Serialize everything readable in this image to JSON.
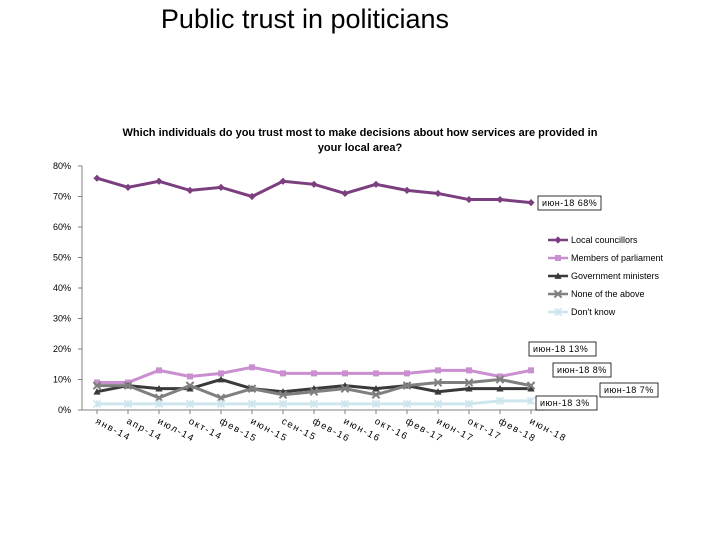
{
  "page": {
    "title": "Public trust in politicians"
  },
  "chart_data": {
    "type": "line",
    "title_lines": [
      "Which individuals do you trust most to make decisions about how services are provided in",
      "your local area?"
    ],
    "categories": [
      "янв-14",
      "апр-14",
      "июл-14",
      "окт-14",
      "фев-15",
      "июн-15",
      "сен-15",
      "фев-16",
      "июн-16",
      "окт-16",
      "фев-17",
      "июн-17",
      "окт-17",
      "фев-18",
      "июн-18"
    ],
    "ylim": [
      0,
      80
    ],
    "yticks": [
      0,
      10,
      20,
      30,
      40,
      50,
      60,
      70,
      80
    ],
    "ytick_labels": [
      "0%",
      "10%",
      "20%",
      "30%",
      "40%",
      "50%",
      "60%",
      "70%",
      "80%"
    ],
    "grid": false,
    "legend_position": "right",
    "series": [
      {
        "name": "Local councillors",
        "color": "#7B3F80",
        "marker": "diamond",
        "values": [
          76,
          73,
          75,
          72,
          73,
          70,
          75,
          74,
          71,
          74,
          72,
          71,
          69,
          69,
          68
        ]
      },
      {
        "name": "Members of parliament",
        "color": "#C98FD0",
        "marker": "square",
        "values": [
          9,
          9,
          13,
          11,
          12,
          14,
          12,
          12,
          12,
          12,
          12,
          13,
          13,
          11,
          13
        ]
      },
      {
        "name": "Government ministers",
        "color": "#3A3A3A",
        "marker": "triangle",
        "values": [
          6,
          8,
          7,
          7,
          10,
          7,
          6,
          7,
          8,
          7,
          8,
          6,
          7,
          7,
          7
        ]
      },
      {
        "name": "None of the above",
        "color": "#7F7F7F",
        "marker": "x",
        "values": [
          8,
          8,
          4,
          8,
          4,
          7,
          5,
          6,
          7,
          5,
          8,
          9,
          9,
          10,
          8
        ]
      },
      {
        "name": "Don't know",
        "color": "#CDE6EE",
        "marker": "star",
        "values": [
          2,
          2,
          2,
          2,
          2,
          2,
          2,
          2,
          2,
          2,
          2,
          2,
          2,
          3,
          3
        ]
      }
    ],
    "annotations": [
      {
        "series_index": 0,
        "text": "июн-18 68%"
      },
      {
        "series_index": 1,
        "text": "июн-18 13%"
      },
      {
        "series_index": 3,
        "text": "июн-18 8%"
      },
      {
        "series_index": 2,
        "text": "июн-18 7%"
      },
      {
        "series_index": 4,
        "text": "июн-18 3%"
      }
    ]
  }
}
